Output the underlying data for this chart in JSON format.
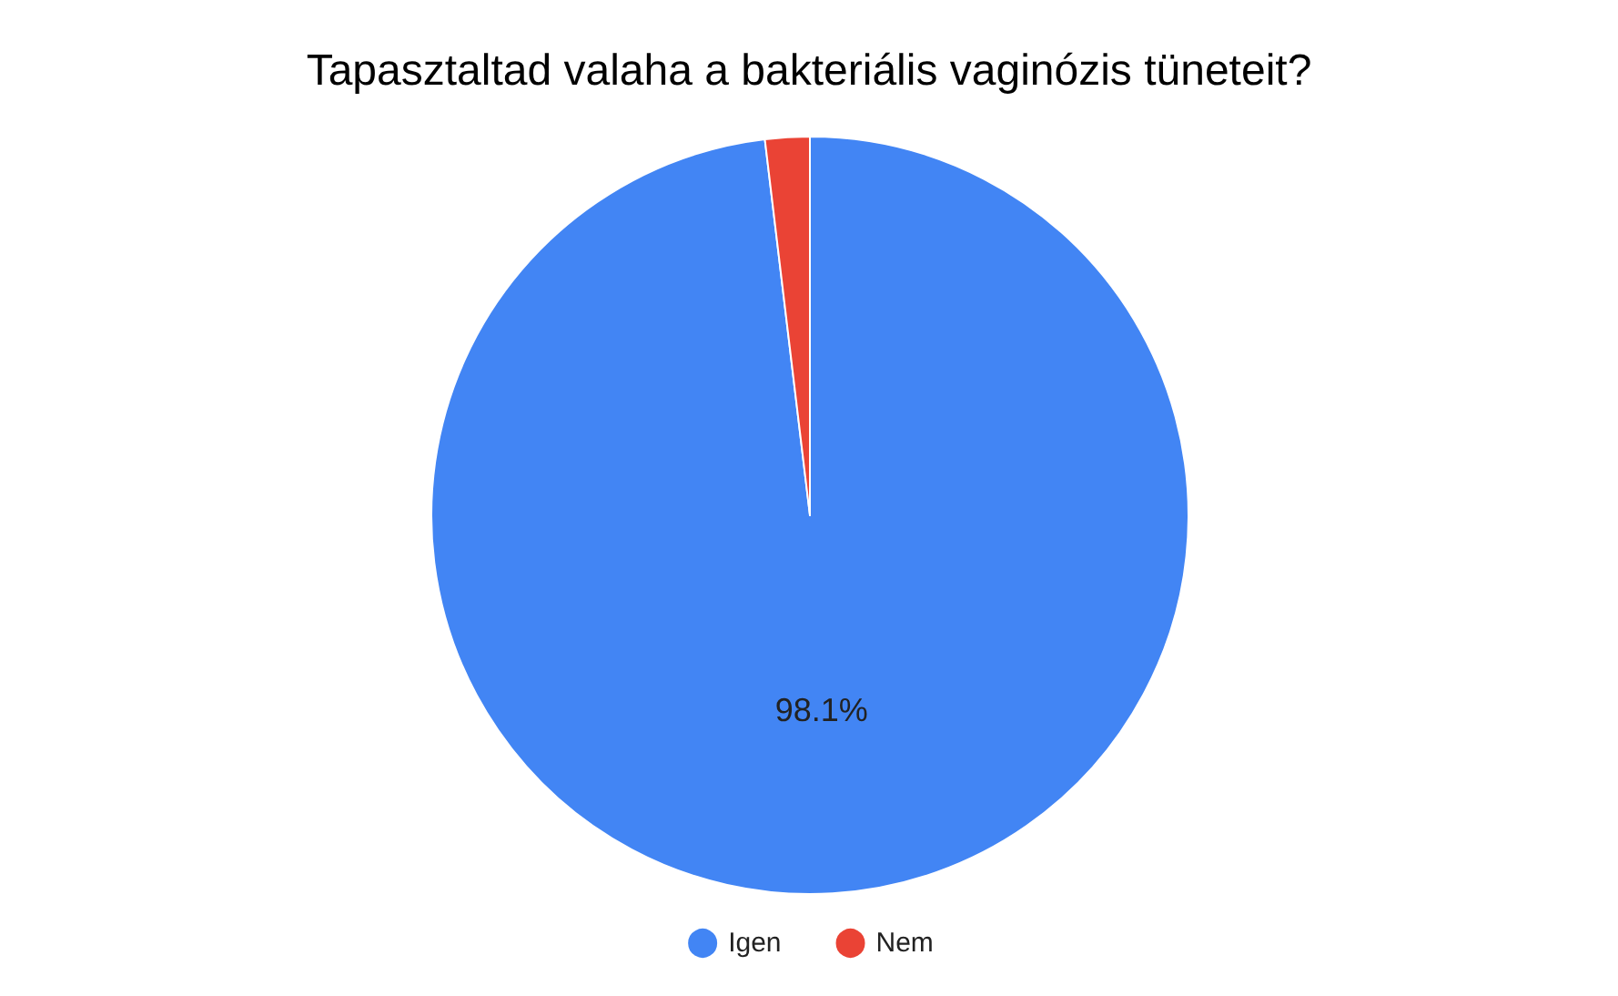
{
  "chart_data": {
    "type": "pie",
    "title": "Tapasztaltad valaha a bakteriális vaginózis tüneteit?",
    "categories": [
      "Igen",
      "Nem"
    ],
    "values": [
      98.1,
      1.9
    ],
    "colors": [
      "#4285f4",
      "#ea4335"
    ],
    "value_labels": [
      "98.1%",
      null
    ],
    "legend": "bottom"
  }
}
